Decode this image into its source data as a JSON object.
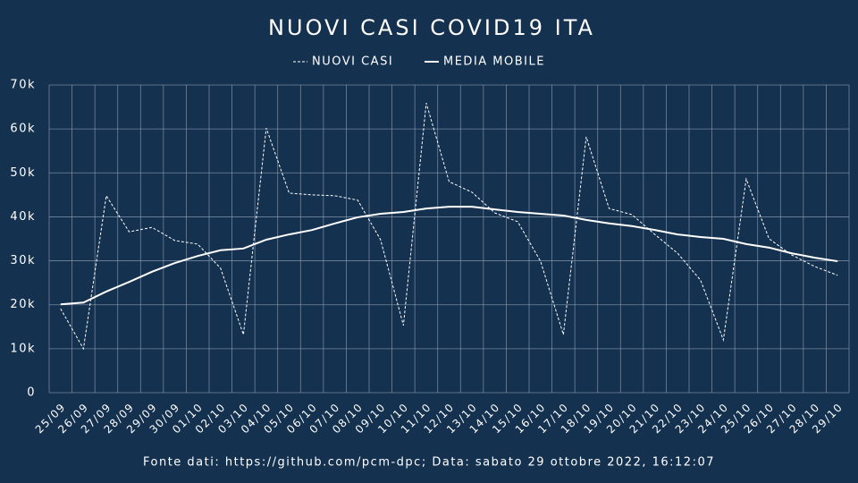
{
  "chart_data": {
    "type": "line",
    "title": "NUOVI CASI COVID19 ITA",
    "footer": "Fonte dati: https://github.com/pcm-dpc; Data: sabato 29 ottobre 2022, 16:12:07",
    "categories": [
      "25/09",
      "26/09",
      "27/09",
      "28/09",
      "29/09",
      "30/09",
      "01/10",
      "02/10",
      "03/10",
      "04/10",
      "05/10",
      "06/10",
      "07/10",
      "08/10",
      "09/10",
      "10/10",
      "11/10",
      "12/10",
      "13/10",
      "14/10",
      "15/10",
      "16/10",
      "17/10",
      "18/10",
      "19/10",
      "20/10",
      "21/10",
      "22/10",
      "23/10",
      "24/10",
      "25/10",
      "26/10",
      "27/10",
      "28/10",
      "29/10"
    ],
    "series": [
      {
        "name": "NUOVI CASI",
        "color": "#ffffff",
        "line_style": "dashed",
        "values": [
          19100,
          10000,
          44800,
          36600,
          37600,
          34600,
          33800,
          28300,
          13200,
          60200,
          45400,
          45000,
          44800,
          43800,
          34800,
          15300,
          65900,
          48000,
          45600,
          40900,
          38900,
          29900,
          13200,
          58200,
          41900,
          40500,
          36000,
          31700,
          25600,
          12000,
          48600,
          35000,
          31300,
          28700,
          26700
        ]
      },
      {
        "name": "MEDIA MOBILE",
        "color": "#ffffff",
        "line_style": "solid",
        "values": [
          20100,
          20500,
          23000,
          25200,
          27500,
          29500,
          31100,
          32400,
          32800,
          34800,
          36000,
          37000,
          38500,
          39900,
          40700,
          41100,
          41900,
          42300,
          42300,
          41700,
          41100,
          40700,
          40300,
          39300,
          38500,
          37900,
          37000,
          36000,
          35400,
          35000,
          33800,
          33000,
          31700,
          30700,
          29900
        ]
      }
    ],
    "ylim": [
      0,
      70000
    ],
    "yticks": [
      0,
      {
        "value": 10000,
        "label": "10k"
      },
      {
        "value": 20000,
        "label": "20k"
      },
      {
        "value": 30000,
        "label": "30k"
      },
      {
        "value": 40000,
        "label": "40k"
      },
      {
        "value": 50000,
        "label": "50k"
      },
      {
        "value": 60000,
        "label": "60k"
      },
      {
        "value": 70000,
        "label": "70k"
      }
    ],
    "grid": true,
    "background": "#14314f"
  }
}
